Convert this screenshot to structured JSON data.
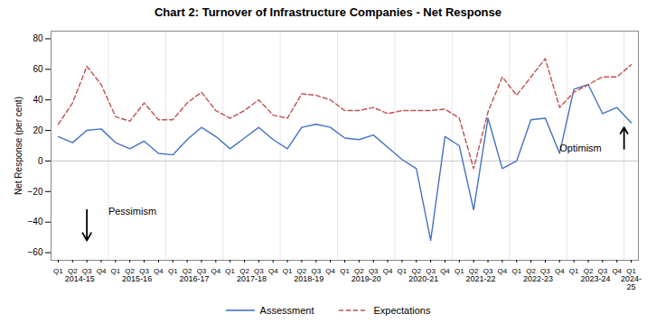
{
  "chart_data": {
    "type": "line",
    "title": "Chart 2:  Turnover of Infrastructure Companies - Net Response",
    "ylabel": "Net Response (per cent)",
    "categories": [
      "Q1",
      "Q2",
      "Q3",
      "Q4",
      "Q1",
      "Q2",
      "Q3",
      "Q4",
      "Q1",
      "Q2",
      "Q3",
      "Q4",
      "Q1",
      "Q2",
      "Q3",
      "Q4",
      "Q1",
      "Q2",
      "Q3",
      "Q4",
      "Q1",
      "Q2",
      "Q3",
      "Q4",
      "Q1",
      "Q2",
      "Q3",
      "Q4",
      "Q1",
      "Q2",
      "Q3",
      "Q4",
      "Q1",
      "Q2",
      "Q3",
      "Q4",
      "Q1",
      "Q2",
      "Q3",
      "Q4",
      "Q1"
    ],
    "year_labels": [
      "2014-15",
      "2015-16",
      "2016-17",
      "2017-18",
      "2018-19",
      "2019-20",
      "2020-21",
      "2021-22",
      "2022-23",
      "2023-24",
      "2024-\n25"
    ],
    "series": [
      {
        "name": "Assessment",
        "color": "#4472C4",
        "line_style": "solid",
        "values": [
          16,
          12,
          20,
          21,
          12,
          8,
          13,
          5,
          4,
          14,
          22,
          16,
          8,
          15,
          22,
          14,
          8,
          22,
          24,
          22,
          15,
          14,
          17,
          9,
          1,
          -5,
          -52,
          16,
          10,
          -32,
          28,
          -5,
          0,
          27,
          28,
          5,
          47,
          50,
          31,
          35,
          25
        ]
      },
      {
        "name": "Expectations",
        "color": "#C0504D",
        "line_style": "dashed",
        "values": [
          24,
          38,
          62,
          50,
          29,
          26,
          38,
          27,
          27,
          38,
          45,
          33,
          28,
          33,
          40,
          30,
          28,
          44,
          43,
          40,
          33,
          33,
          35,
          31,
          33,
          33,
          33,
          34,
          28,
          -5,
          32,
          55,
          43,
          55,
          67,
          35,
          45,
          50,
          55,
          55,
          63
        ]
      }
    ],
    "ylim": [
      -65,
      85
    ],
    "yticks": [
      -60,
      -40,
      -20,
      0,
      20,
      40,
      60,
      80
    ],
    "annotations": [
      {
        "text": "Pessimism",
        "x": 3.5,
        "y": -33,
        "arrow": {
          "x": 2,
          "from": -32,
          "to": -52
        }
      },
      {
        "text": "Optimism",
        "x": 35,
        "y": 8,
        "arrow": {
          "x": 39.5,
          "from": 8,
          "to": 22
        }
      }
    ],
    "legend": "bottom",
    "grid": false
  }
}
